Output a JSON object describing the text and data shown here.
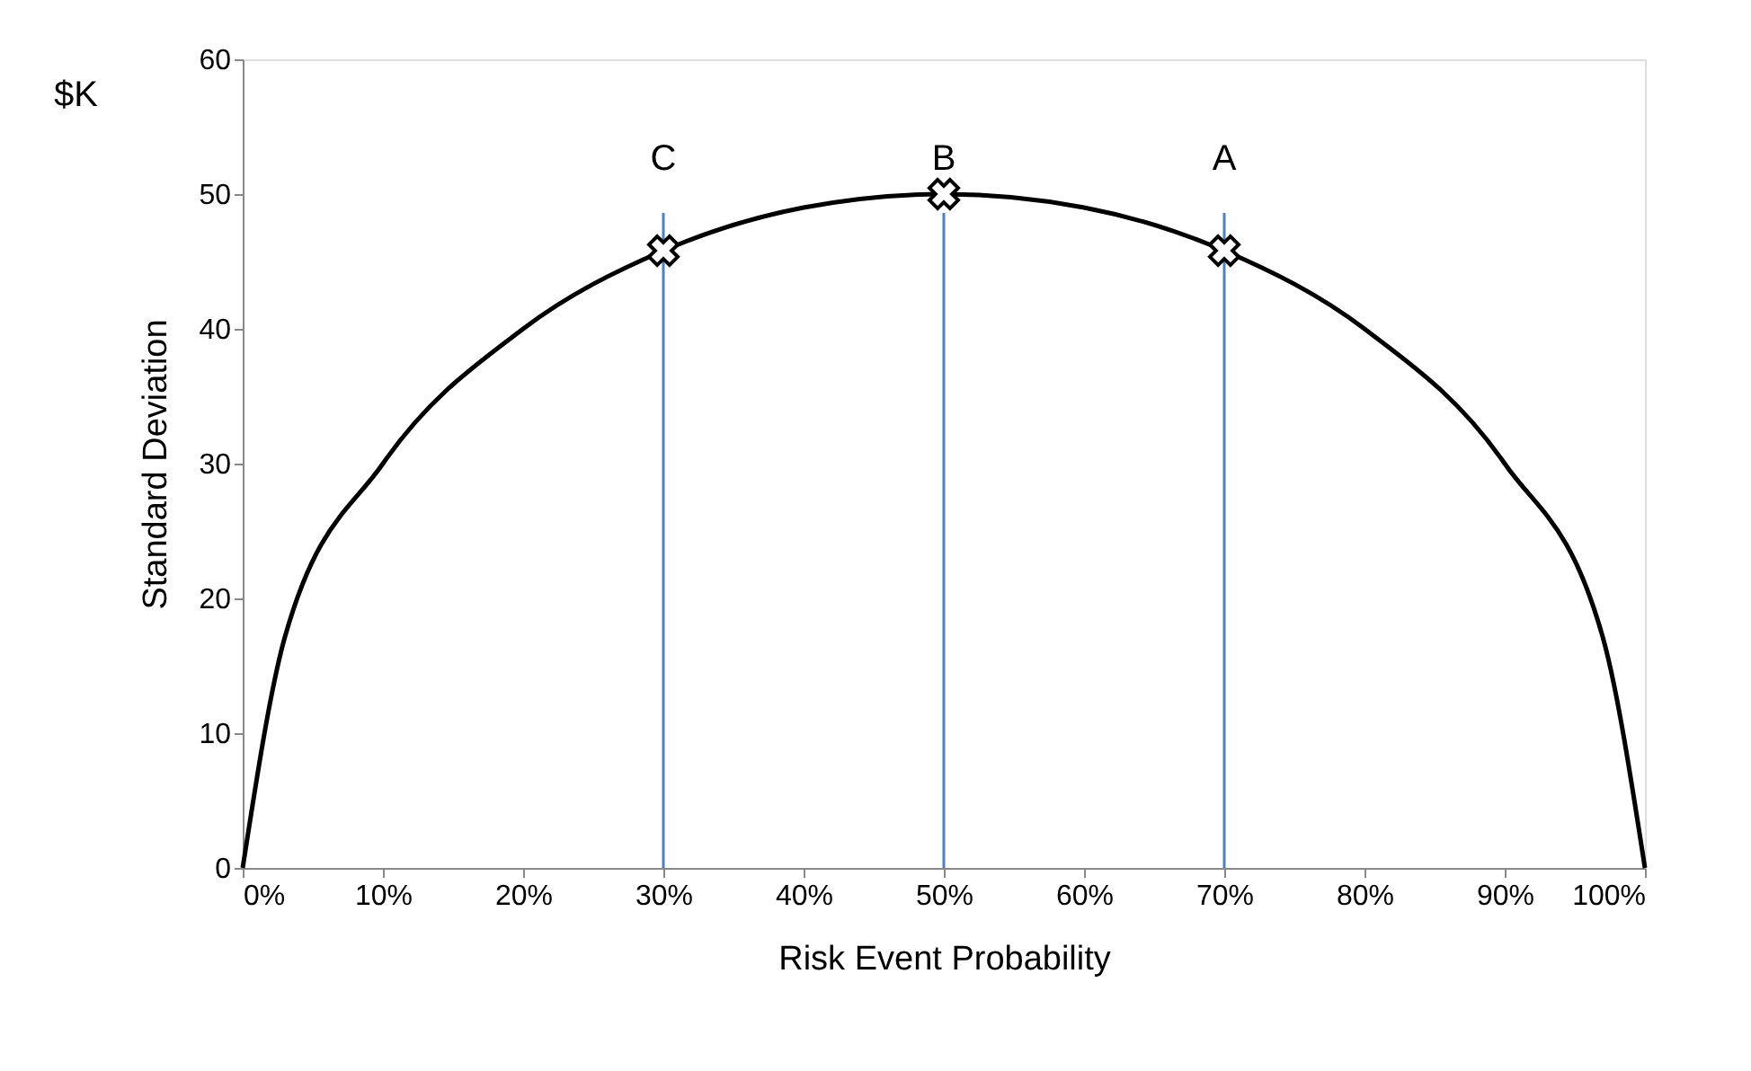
{
  "chart_data": {
    "type": "line",
    "xlabel": "Risk Event Probability",
    "ylabel": "Standard Deviation",
    "annotations": [
      "$K"
    ],
    "series": [
      {
        "color": "#000000",
        "marker": "none",
        "x": [
          0,
          3,
          10,
          20,
          30,
          40,
          50,
          60,
          70,
          80,
          90,
          97,
          100
        ],
        "values": [
          0,
          17.1,
          30,
          40,
          45.8,
          49,
          50,
          49,
          45.8,
          40,
          30,
          17.1,
          0
        ]
      },
      {
        "type": "scatter",
        "color": "#000000",
        "marker": "cross",
        "x": [
          30,
          50,
          70
        ],
        "values": [
          45.8,
          50,
          45.8
        ]
      }
    ],
    "ref_lines": [
      {
        "axis": "x",
        "value": 30,
        "label": "C",
        "color": "#4f81bd"
      },
      {
        "axis": "x",
        "value": 50,
        "label": "B",
        "color": "#4f81bd"
      },
      {
        "axis": "x",
        "value": 70,
        "label": "A",
        "color": "#4f81bd"
      }
    ],
    "xlim": [
      0,
      100
    ],
    "xticks": [
      {
        "value": 0,
        "label": "0%"
      },
      {
        "value": 10,
        "label": "10%"
      },
      {
        "value": 20,
        "label": "20%"
      },
      {
        "value": 30,
        "label": "30%"
      },
      {
        "value": 40,
        "label": "40%"
      },
      {
        "value": 50,
        "label": "50%"
      },
      {
        "value": 60,
        "label": "60%"
      },
      {
        "value": 70,
        "label": "70%"
      },
      {
        "value": 80,
        "label": "80%"
      },
      {
        "value": 90,
        "label": "90%"
      },
      {
        "value": 100,
        "label": "100%"
      }
    ],
    "ylim": [
      0,
      60
    ],
    "yticks": [
      0,
      10,
      20,
      30,
      40,
      50,
      60
    ],
    "grid": false
  }
}
